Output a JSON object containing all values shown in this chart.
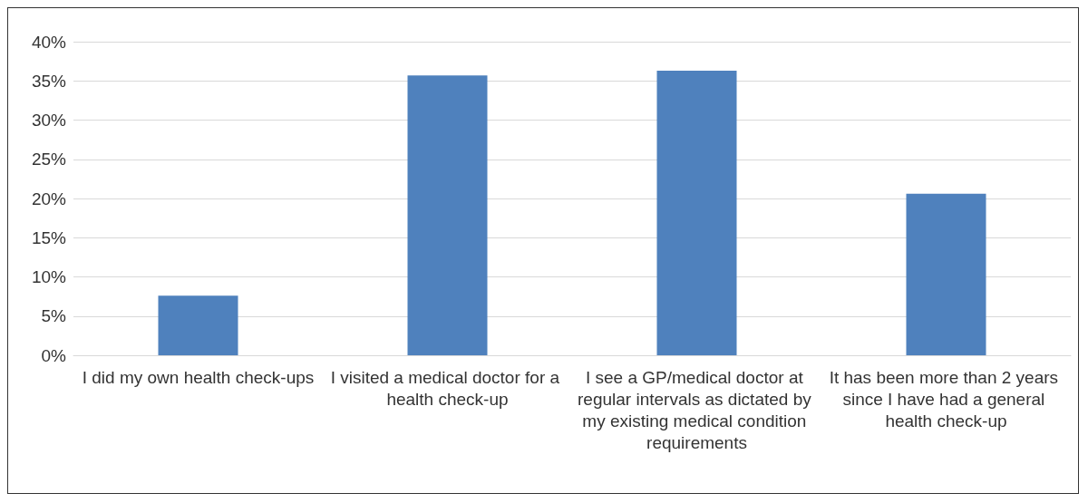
{
  "chart_data": {
    "type": "bar",
    "categories": [
      "I did my own health check-ups",
      "I visited a medical doctor for a health check-up",
      "I see a GP/medical doctor at regular intervals as dictated by my existing medical condition requirements",
      "It has been more than 2 years since I have had a general health check-up"
    ],
    "values": [
      7.6,
      35.7,
      36.3,
      20.6
    ],
    "color": "#4f81bd",
    "ylim": [
      0,
      40
    ],
    "yticks": [
      {
        "value": 0,
        "label": "0%"
      },
      {
        "value": 5,
        "label": "5%"
      },
      {
        "value": 10,
        "label": "10%"
      },
      {
        "value": 15,
        "label": "15%"
      },
      {
        "value": 20,
        "label": "20%"
      },
      {
        "value": 25,
        "label": "25%"
      },
      {
        "value": 30,
        "label": "30%"
      },
      {
        "value": 35,
        "label": "35%"
      },
      {
        "value": 40,
        "label": "40%"
      }
    ],
    "grid": "y"
  }
}
